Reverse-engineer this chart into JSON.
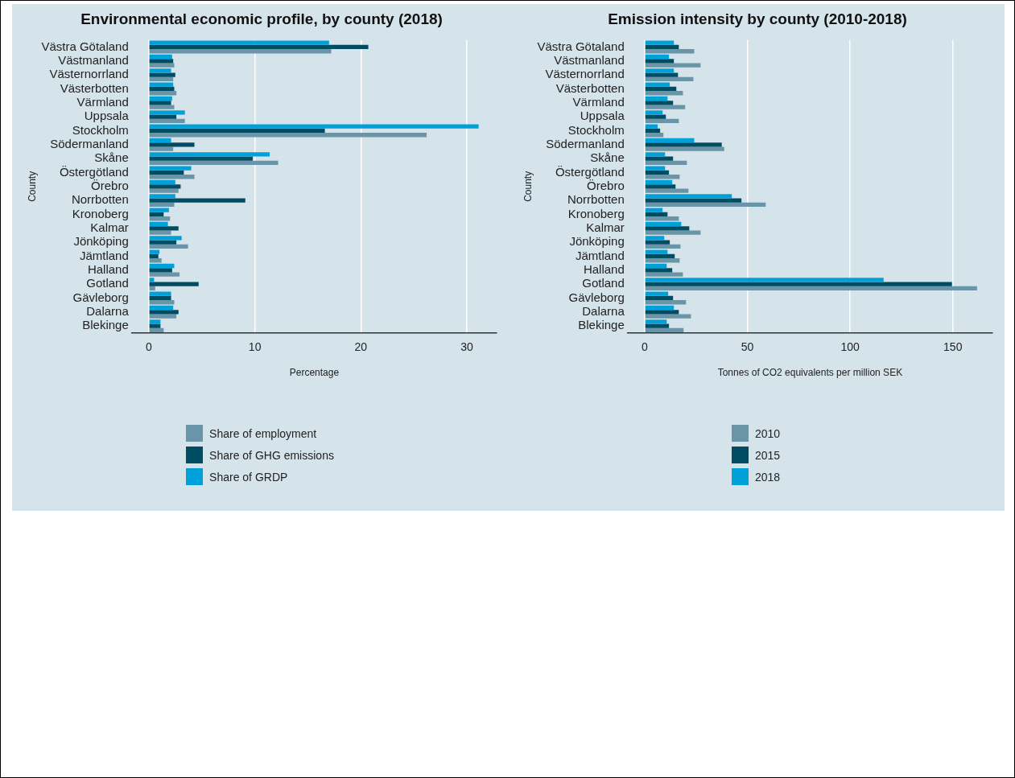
{
  "chart_data": [
    {
      "type": "bar",
      "orientation": "horizontal",
      "title": "Environmental economic profile, by county (2018)",
      "xlabel": "Percentage",
      "ylabel": "County",
      "categories": [
        "Västra Götaland",
        "Västmanland",
        "Västernorrland",
        "Västerbotten",
        "Värmland",
        "Uppsala",
        "Stockholm",
        "Södermanland",
        "Skåne",
        "Östergötland",
        "Örebro",
        "Norrbotten",
        "Kronoberg",
        "Kalmar",
        "Jönköping",
        "Jämtland",
        "Halland",
        "Gotland",
        "Gävleborg",
        "Dalarna",
        "Blekinge"
      ],
      "series": [
        {
          "name": "Share of employment",
          "color": "#6a95a8",
          "values": [
            17.2,
            2.4,
            2.3,
            2.6,
            2.4,
            3.4,
            26.2,
            2.3,
            12.2,
            4.3,
            2.8,
            2.4,
            2.0,
            2.1,
            3.7,
            1.2,
            2.9,
            0.6,
            2.4,
            2.6,
            1.4
          ]
        },
        {
          "name": "Share of GHG emissions",
          "color": "#004c63",
          "values": [
            20.7,
            2.3,
            2.5,
            2.4,
            2.1,
            2.6,
            16.6,
            4.3,
            9.8,
            3.3,
            3.0,
            9.1,
            1.4,
            2.8,
            2.6,
            0.9,
            2.2,
            4.7,
            2.1,
            2.8,
            1.1
          ]
        },
        {
          "name": "Share of GRDP",
          "color": "#00a0d8",
          "values": [
            17.0,
            2.2,
            2.1,
            2.3,
            2.2,
            3.4,
            31.1,
            2.1,
            11.4,
            4.0,
            2.5,
            2.5,
            1.9,
            1.8,
            3.1,
            1.0,
            2.4,
            0.5,
            2.1,
            2.3,
            1.1
          ]
        }
      ],
      "xlim": [
        -1.6,
        32.8
      ],
      "xticks": [
        0,
        10,
        20,
        30
      ],
      "grid": "x",
      "legend": "bottom"
    },
    {
      "type": "bar",
      "orientation": "horizontal",
      "title": "Emission intensity by county (2010-2018)",
      "xlabel": "Tonnes of CO2 equivalents per million SEK",
      "ylabel": "County",
      "categories": [
        "Västra Götaland",
        "Västmanland",
        "Västernorrland",
        "Västerbotten",
        "Värmland",
        "Uppsala",
        "Stockholm",
        "Södermanland",
        "Skåne",
        "Östergötland",
        "Örebro",
        "Norrbotten",
        "Kronoberg",
        "Kalmar",
        "Jönköping",
        "Jämtland",
        "Halland",
        "Gotland",
        "Gävleborg",
        "Dalarna",
        "Blekinge"
      ],
      "series": [
        {
          "name": "2010",
          "color": "#6a95a8",
          "values": [
            24.1,
            27.2,
            23.7,
            18.6,
            19.7,
            16.6,
            9.1,
            38.7,
            20.5,
            17.0,
            21.3,
            58.9,
            16.6,
            27.2,
            17.4,
            17.0,
            18.6,
            161.8,
            20.1,
            22.5,
            18.9
          ]
        },
        {
          "name": "2015",
          "color": "#004c63",
          "values": [
            16.6,
            14.2,
            16.2,
            15.4,
            13.8,
            10.3,
            7.5,
            37.5,
            13.8,
            11.8,
            15.0,
            47.1,
            11.1,
            21.7,
            12.2,
            14.6,
            13.4,
            149.6,
            13.8,
            16.6,
            11.8
          ]
        },
        {
          "name": "2018",
          "color": "#00a0d8",
          "values": [
            14.2,
            11.8,
            14.2,
            12.2,
            11.1,
            8.7,
            6.3,
            24.1,
            9.9,
            9.9,
            13.4,
            42.4,
            8.7,
            17.8,
            9.5,
            11.1,
            10.7,
            116.3,
            11.4,
            14.2,
            10.7
          ]
        }
      ],
      "xlim": [
        -8.3,
        169.3
      ],
      "xticks": [
        0,
        50,
        100,
        150
      ],
      "grid": "x",
      "legend": "bottom"
    }
  ]
}
